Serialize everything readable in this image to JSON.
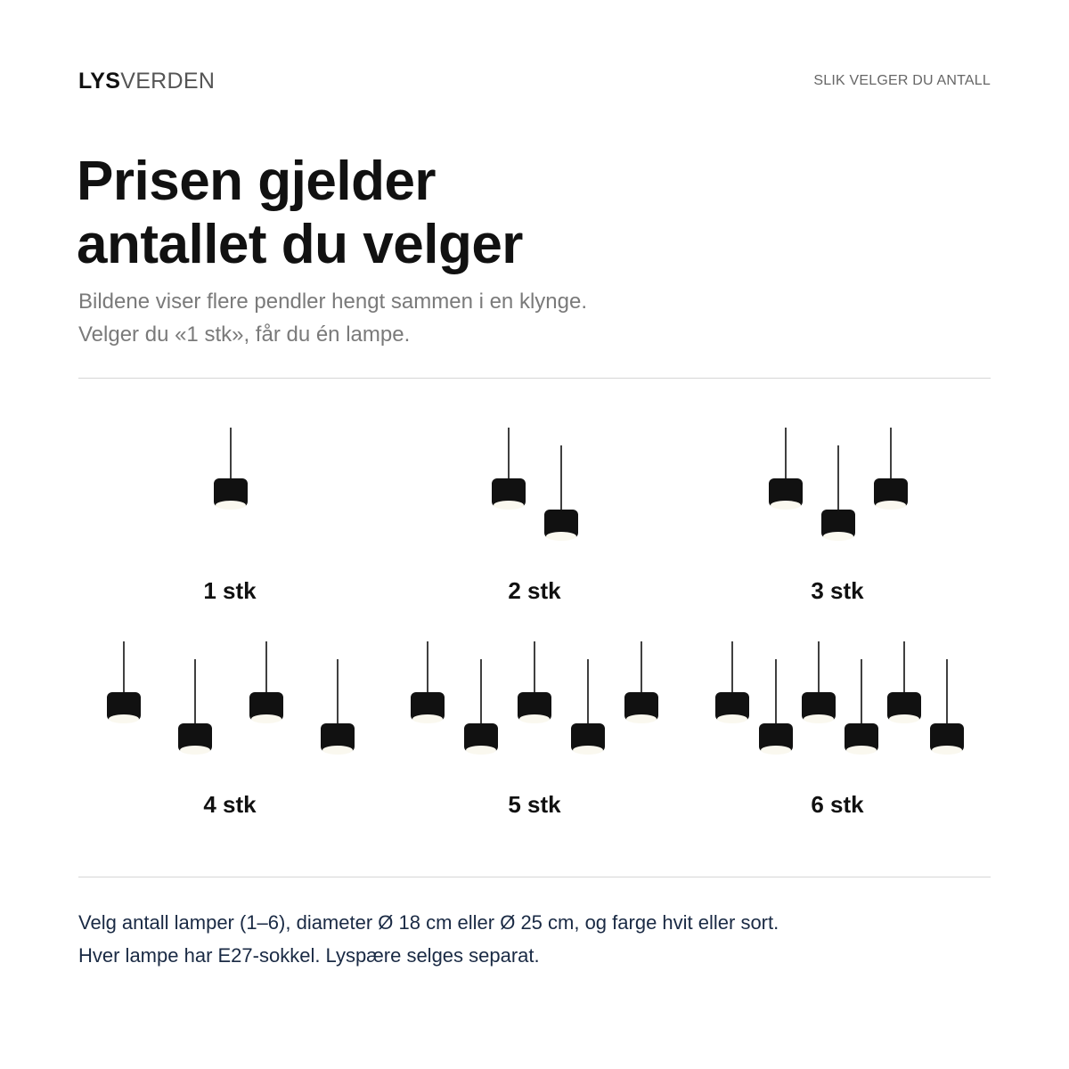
{
  "header": {
    "brand_strong": "LYS",
    "brand_light": "VERDEN",
    "link": "SLIK VELGER DU ANTALL"
  },
  "hero": {
    "title_line1": "Prisen gjelder",
    "title_line2": "antallet du velger",
    "subtitle_line1": "Bildene viser flere pendler hengt sammen i en klynge.",
    "subtitle_line2": "Velger du «1 stk», får du én lampe."
  },
  "options": [
    {
      "label": "1 stk",
      "count": 1
    },
    {
      "label": "2 stk",
      "count": 2
    },
    {
      "label": "3 stk",
      "count": 3
    },
    {
      "label": "4 stk",
      "count": 4
    },
    {
      "label": "5 stk",
      "count": 5
    },
    {
      "label": "6 stk",
      "count": 6
    }
  ],
  "footer": {
    "line1": "Velg antall lamper (1–6), diameter Ø 18 cm eller Ø 25 cm, og farge hvit eller sort.",
    "line2": "Hver lampe har E27-sokkel. Lyspære selges separat."
  },
  "colors": {
    "lamp": "#111111",
    "diffuser": "#faf8ef",
    "text": "#111111",
    "muted": "#7a7a7a",
    "footer_text": "#1a2a44",
    "rule": "#d6d6d6"
  },
  "icons": {
    "lamp": "pendant-lamp-icon"
  }
}
